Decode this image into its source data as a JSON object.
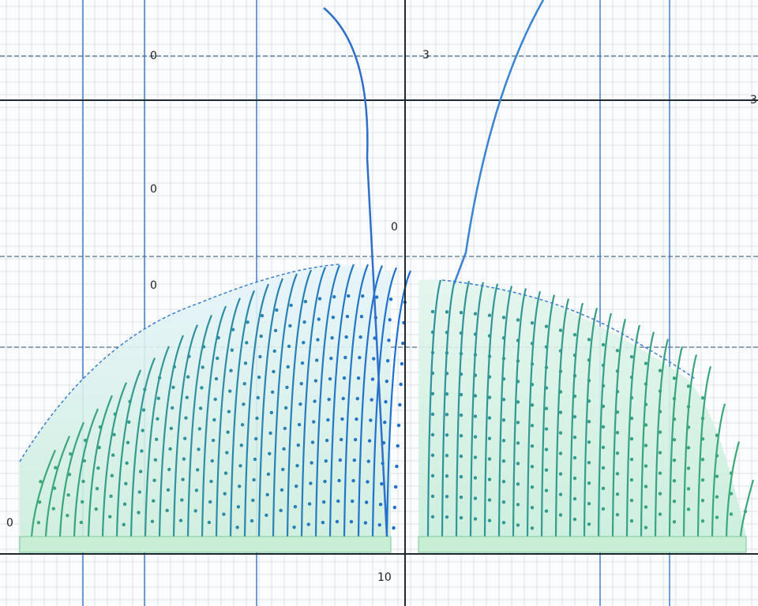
{
  "labels": [
    "0",
    "3",
    "3",
    "10",
    "0",
    "0",
    "0",
    "0"
  ]
}
